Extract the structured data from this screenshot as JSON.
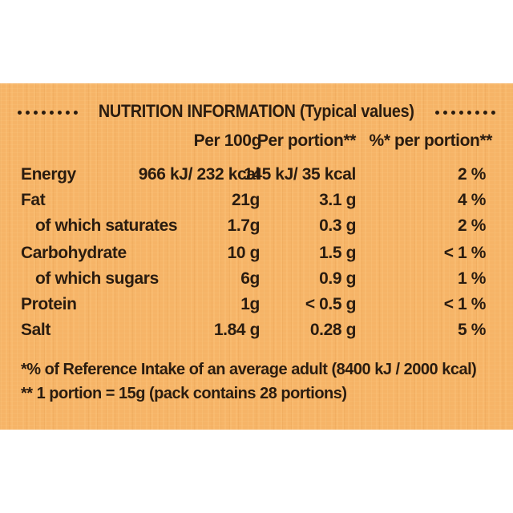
{
  "title": "NUTRITION INFORMATION (Typical values)",
  "headers": {
    "per_100g": "Per 100g",
    "per_portion": "Per portion**",
    "pct_portion": "%* per portion**"
  },
  "rows": [
    {
      "label": "Energy",
      "per_100g": "966 kJ/ 232 kcal",
      "per_portion": "145 kJ/ 35 kcal",
      "pct": "2 %"
    },
    {
      "label": "Fat",
      "per_100g": "21g",
      "per_portion": "3.1 g",
      "pct": "4 %"
    },
    {
      "label": "of which saturates",
      "per_100g": "1.7g",
      "per_portion": "0.3 g",
      "pct": "2 %"
    },
    {
      "label": "Carbohydrate",
      "per_100g": "10 g",
      "per_portion": "1.5 g",
      "pct": "< 1 %"
    },
    {
      "label": "of which sugars",
      "per_100g": "6g",
      "per_portion": "0.9 g",
      "pct": "1 %"
    },
    {
      "label": "Protein",
      "per_100g": "1g",
      "per_portion": "< 0.5 g",
      "pct": "< 1 %"
    },
    {
      "label": "Salt",
      "per_100g": "1.84 g",
      "per_portion": "0.28 g",
      "pct": "5 %"
    }
  ],
  "footnotes": [
    "*% of Reference Intake of an average adult (8400 kJ / 2000 kcal)",
    "** 1 portion = 15g (pack contains 28 portions)"
  ],
  "colors": {
    "panel": "#f6b467",
    "text": "#2a1c10"
  }
}
